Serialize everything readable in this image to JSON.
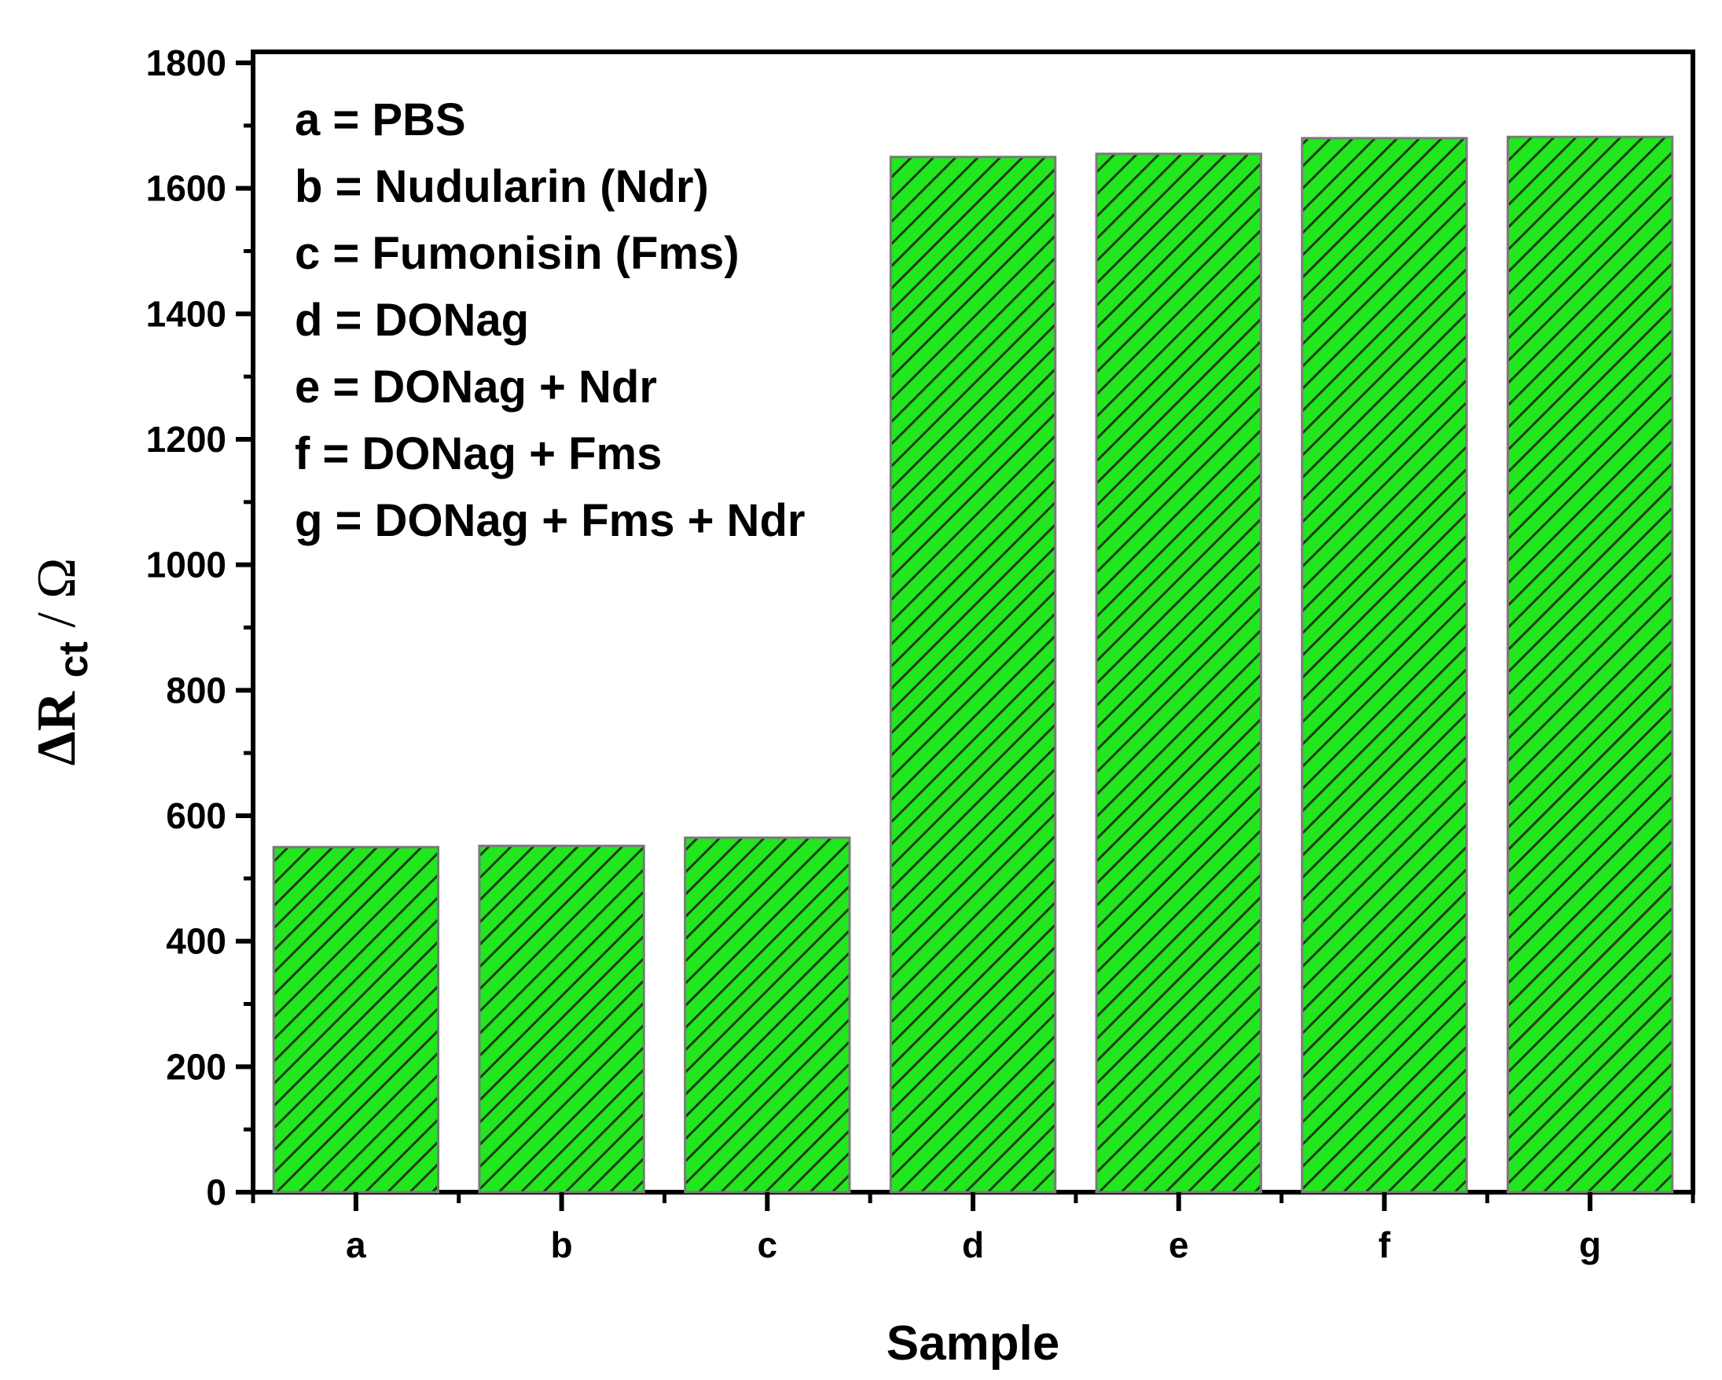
{
  "chart_data": {
    "type": "bar",
    "categories": [
      "a",
      "b",
      "c",
      "d",
      "e",
      "f",
      "g"
    ],
    "values": [
      550,
      552,
      565,
      1650,
      1655,
      1680,
      1682
    ],
    "xlabel": "Sample",
    "ylabel": {
      "prefix": "ΔR",
      "subscript": "ct",
      "suffix": " / Ω"
    },
    "ylim": [
      0,
      1800
    ],
    "yticks": [
      0,
      200,
      400,
      600,
      800,
      1000,
      1200,
      1400,
      1600,
      1800
    ],
    "bar_color": "#22e61e",
    "hatch_color": "#1a3a12",
    "legend_placement": "top-left",
    "annotations": [
      "a = PBS",
      "b = Nudularin (Ndr)",
      "c = Fumonisin (Fms)",
      "d = DONag",
      "e = DONag + Ndr",
      "f = DONag + Fms",
      "g = DONag + Fms + Ndr"
    ],
    "grid": false
  }
}
